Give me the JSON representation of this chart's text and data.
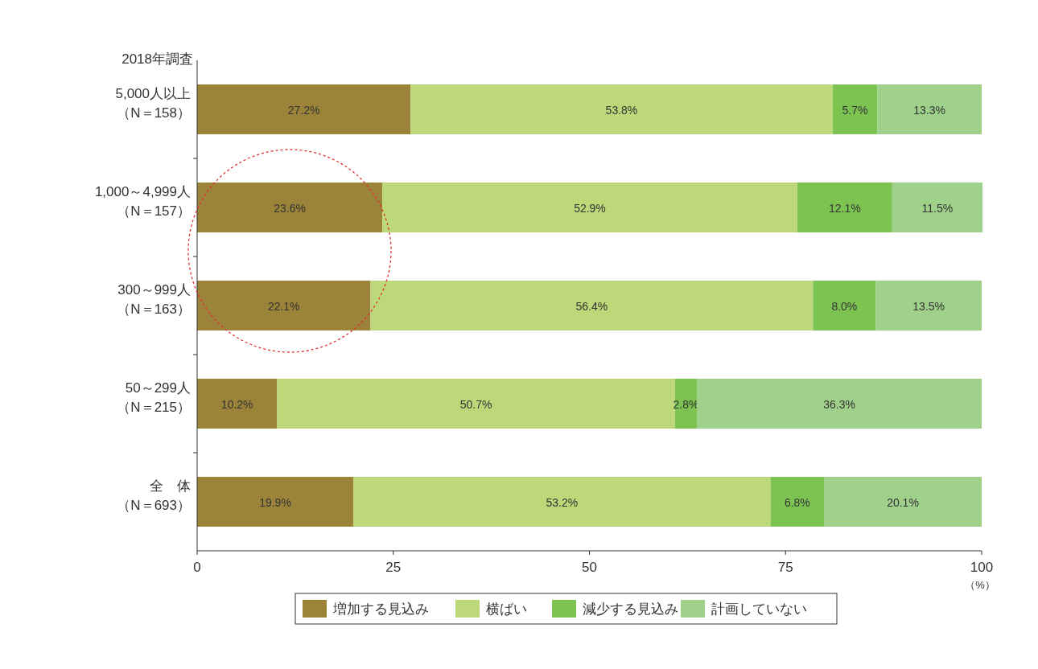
{
  "chart_data": {
    "type": "bar",
    "orientation": "horizontal",
    "stacked": true,
    "subtitle": "2018年調査",
    "categories": [
      "5,000人以上（N＝158）",
      "1,000～4,999人（N＝157）",
      "300～999人（N＝163）",
      "50～299人（N＝215）",
      "全　体（N＝693）"
    ],
    "series": [
      {
        "name": "増加する見込み",
        "color": "#9b8439",
        "values": [
          27.2,
          23.6,
          22.1,
          10.2,
          19.9
        ],
        "value_labels": [
          "27.2%",
          "23.6%",
          "22.1%",
          "10.2%",
          "19.9%"
        ]
      },
      {
        "name": "横ばい",
        "color": "#bcd878",
        "values": [
          53.8,
          52.9,
          56.4,
          50.7,
          53.2
        ],
        "value_labels": [
          "53.8%",
          "52.9%",
          "56.4%",
          "50.7%",
          "53.2%"
        ]
      },
      {
        "name": "減少する見込み",
        "color": "#7dc352",
        "values": [
          5.7,
          12.1,
          8.0,
          2.8,
          6.8
        ],
        "value_labels": [
          "5.7%",
          "12.1%",
          "8.0%",
          "2.8%",
          "6.8%"
        ]
      },
      {
        "name": "計画していない",
        "color": "#9fd18b",
        "values": [
          13.3,
          11.5,
          13.5,
          36.3,
          20.1
        ],
        "value_labels": [
          "13.3%",
          "11.5%",
          "13.5%",
          "36.3%",
          "20.1%"
        ]
      }
    ],
    "xlim": [
      0,
      100
    ],
    "xticks": [
      0,
      25,
      50,
      75,
      100
    ],
    "xlabel": "（%）",
    "grid": false,
    "legend": "bottom"
  }
}
